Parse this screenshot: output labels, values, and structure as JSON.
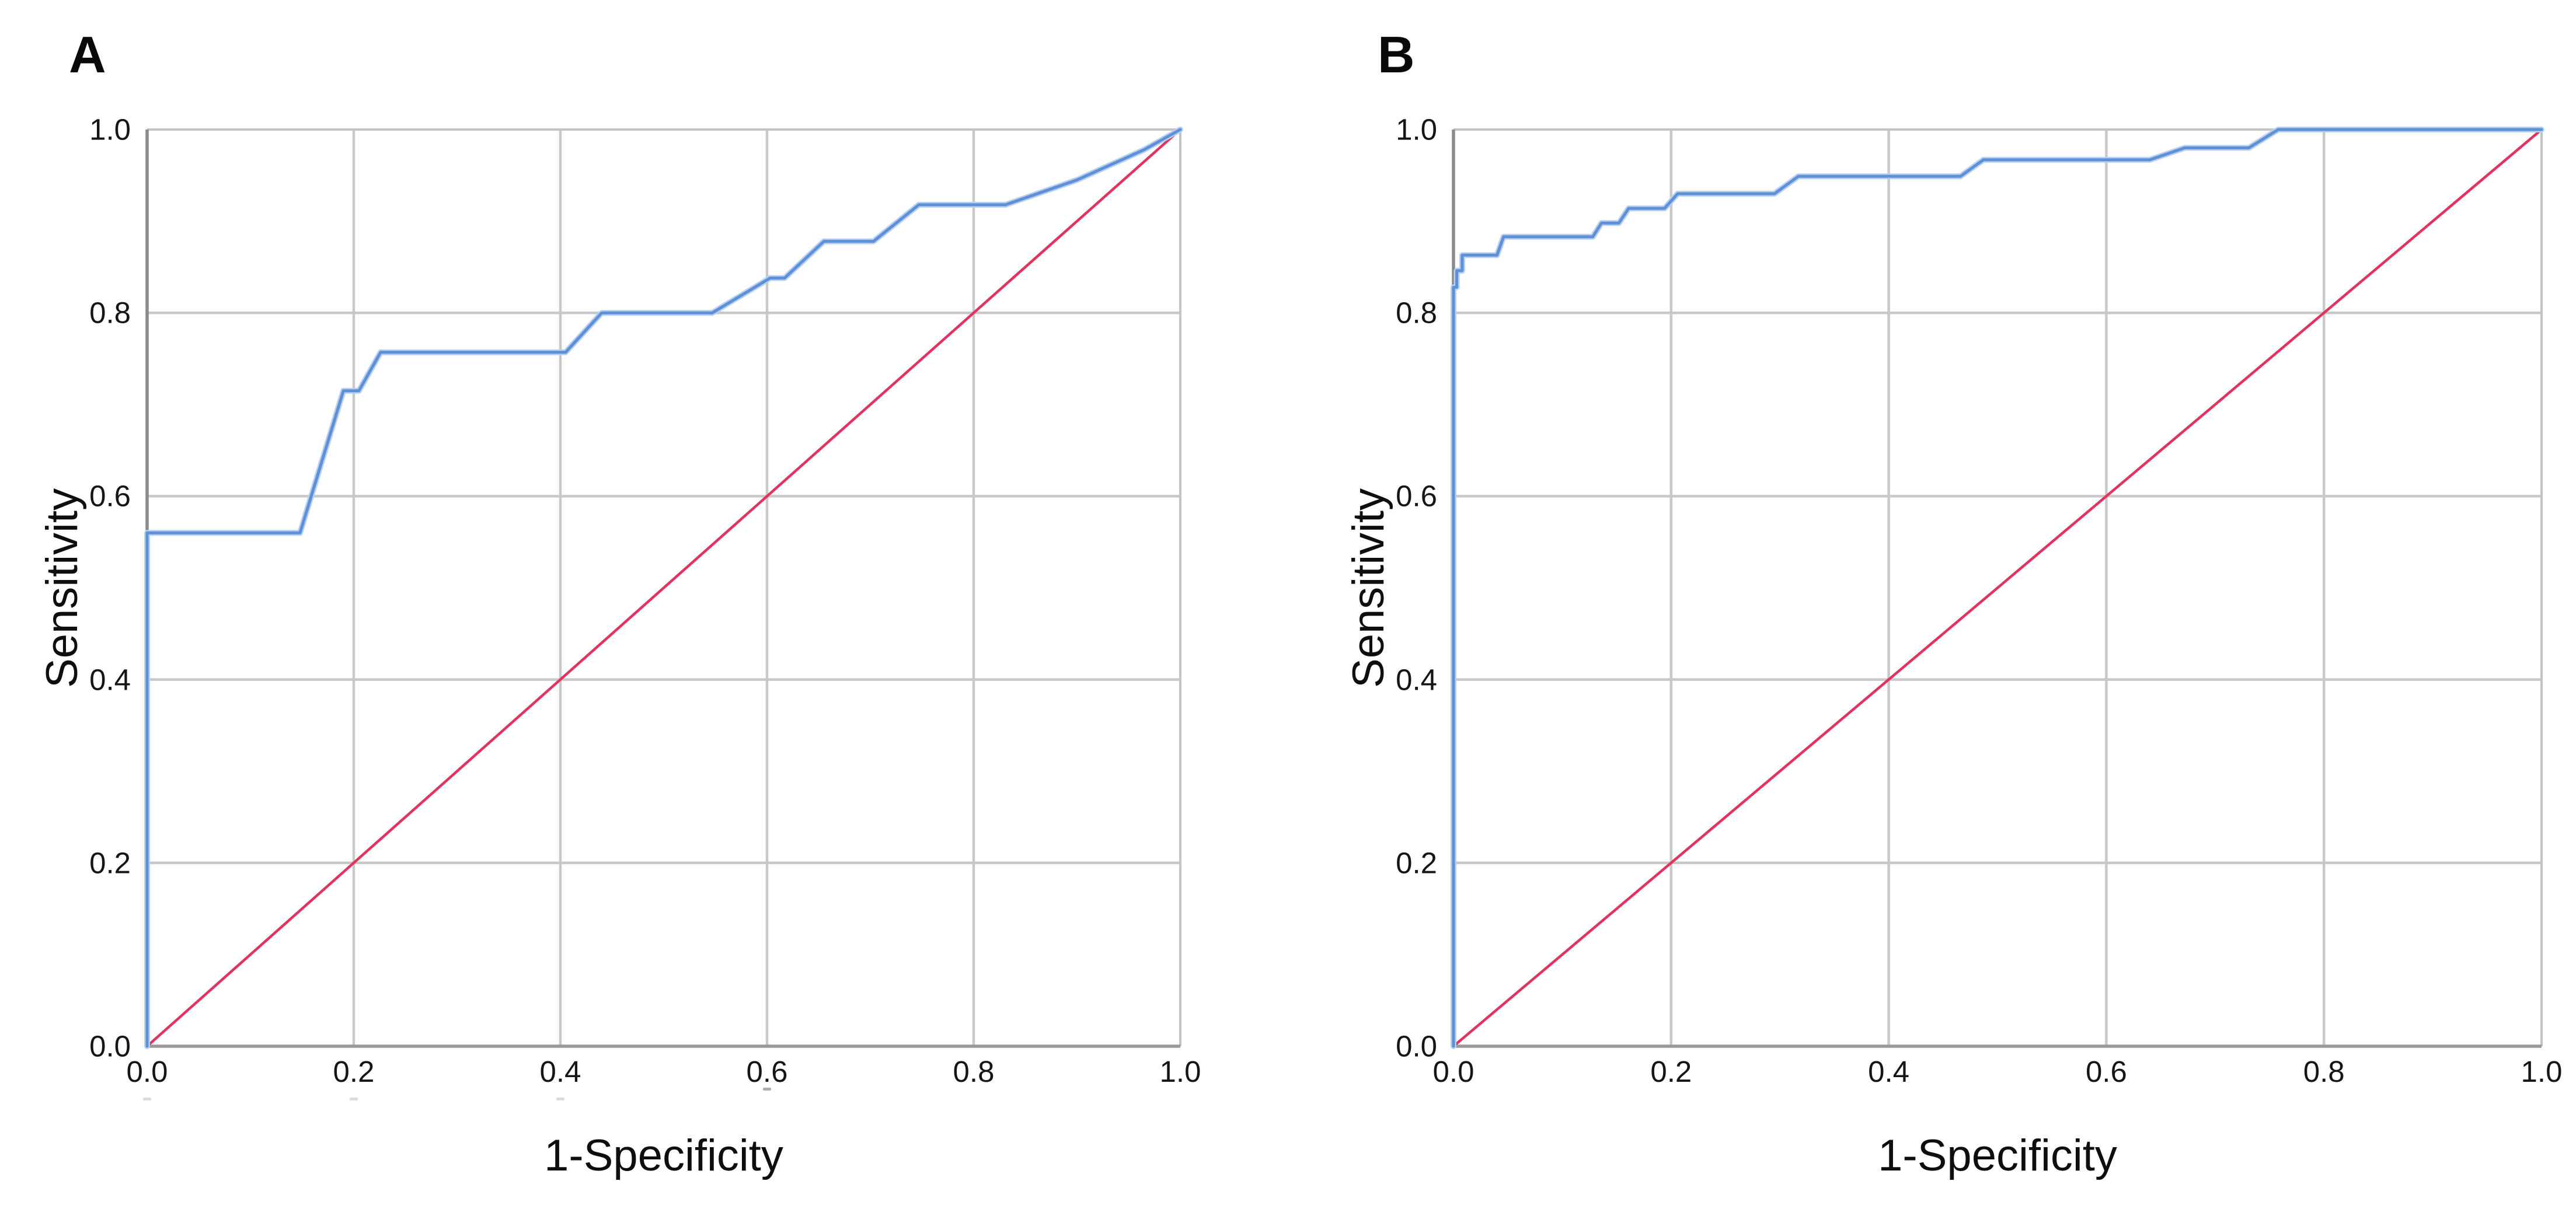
{
  "figure": {
    "description_visible_text_only": "Two-panel ROC curve figure",
    "panel_labels": [
      "A",
      "B"
    ]
  },
  "colors": {
    "roc_curve": "#5e90d8",
    "roc_halo": "#b7d0f0",
    "reference_line": "#e1335e",
    "gridline": "#c8c8c8",
    "axis_border_dark": "#8a8a8a",
    "axis_border_bottom": "#9a9a9a",
    "axis_border_light": "#c4c4c4",
    "text": "#111111",
    "background": "#ffffff"
  },
  "chart_data": [
    {
      "type": "line",
      "panel_label": "A",
      "title": "",
      "xlabel": "1-Specificity",
      "ylabel": "Sensitivity",
      "xlim": [
        0,
        1
      ],
      "ylim": [
        0,
        1
      ],
      "grid": true,
      "legend": "none",
      "x_ticks": [
        0.0,
        0.2,
        0.4,
        0.6,
        0.8,
        1.0
      ],
      "y_ticks": [
        0.0,
        0.2,
        0.4,
        0.6,
        0.8,
        1.0
      ],
      "x_tick_labels": [
        "0.0",
        "0.2",
        "0.4",
        "0.6",
        "0.8",
        "1.0"
      ],
      "y_tick_labels": [
        "0.0",
        "0.2",
        "0.4",
        "0.6",
        "0.8",
        "1.0"
      ],
      "series": [
        {
          "name": "ROC curve",
          "role": "roc",
          "points": [
            [
              0,
              0
            ],
            [
              0,
              0.56
            ],
            [
              0.148,
              0.56
            ],
            [
              0.19,
              0.715
            ],
            [
              0.205,
              0.715
            ],
            [
              0.226,
              0.757
            ],
            [
              0.405,
              0.757
            ],
            [
              0.44,
              0.8
            ],
            [
              0.547,
              0.8
            ],
            [
              0.603,
              0.838
            ],
            [
              0.617,
              0.838
            ],
            [
              0.655,
              0.878
            ],
            [
              0.703,
              0.878
            ],
            [
              0.747,
              0.918
            ],
            [
              0.831,
              0.918
            ],
            [
              0.9,
              0.945
            ],
            [
              0.965,
              0.978
            ],
            [
              1,
              1
            ]
          ]
        },
        {
          "name": "Reference diagonal",
          "role": "reference",
          "points": [
            [
              0,
              0
            ],
            [
              1,
              1
            ]
          ]
        }
      ]
    },
    {
      "type": "line",
      "panel_label": "B",
      "title": "",
      "xlabel": "1-Specificity",
      "ylabel": "Sensitivity",
      "xlim": [
        0,
        1
      ],
      "ylim": [
        0,
        1
      ],
      "grid": true,
      "legend": "none",
      "x_ticks": [
        0.0,
        0.2,
        0.4,
        0.6,
        0.8,
        1.0
      ],
      "y_ticks": [
        0.0,
        0.2,
        0.4,
        0.6,
        0.8,
        1.0
      ],
      "x_tick_labels": [
        "0.0",
        "0.2",
        "0.4",
        "0.6",
        "0.8",
        "1.0"
      ],
      "y_tick_labels": [
        "0.0",
        "0.2",
        "0.4",
        "0.6",
        "0.8",
        "1.0"
      ],
      "series": [
        {
          "name": "ROC curve",
          "role": "roc",
          "points": [
            [
              0,
              0
            ],
            [
              0,
              0.828
            ],
            [
              0.003,
              0.828
            ],
            [
              0.003,
              0.846
            ],
            [
              0.008,
              0.846
            ],
            [
              0.008,
              0.863
            ],
            [
              0.04,
              0.863
            ],
            [
              0.046,
              0.883
            ],
            [
              0.128,
              0.883
            ],
            [
              0.136,
              0.898
            ],
            [
              0.152,
              0.898
            ],
            [
              0.161,
              0.914
            ],
            [
              0.194,
              0.914
            ],
            [
              0.206,
              0.93
            ],
            [
              0.295,
              0.93
            ],
            [
              0.317,
              0.949
            ],
            [
              0.466,
              0.949
            ],
            [
              0.487,
              0.967
            ],
            [
              0.64,
              0.967
            ],
            [
              0.672,
              0.98
            ],
            [
              0.731,
              0.98
            ],
            [
              0.758,
              1
            ],
            [
              1,
              1
            ]
          ]
        },
        {
          "name": "Reference diagonal",
          "role": "reference",
          "points": [
            [
              0,
              0
            ],
            [
              1,
              1
            ]
          ]
        }
      ]
    }
  ]
}
